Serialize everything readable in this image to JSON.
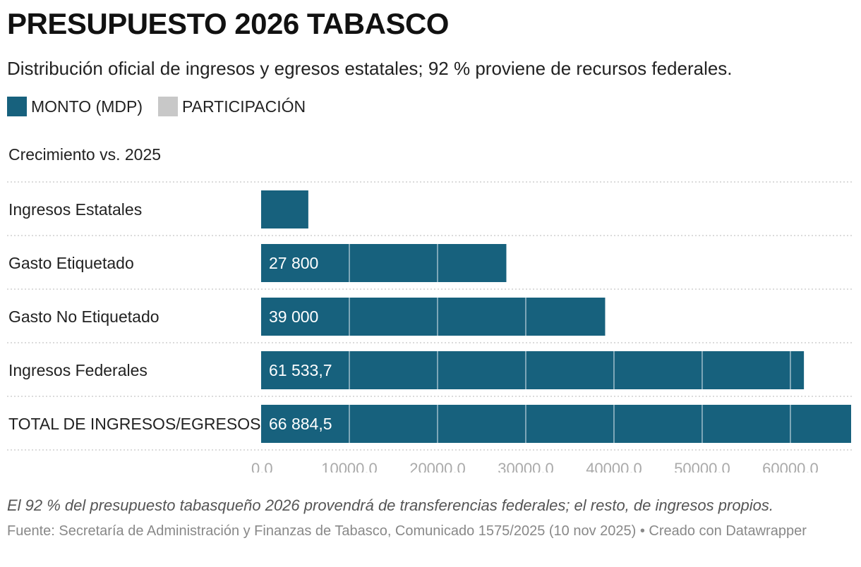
{
  "title": "PRESUPUESTO 2026 TABASCO",
  "subtitle": "Distribución oficial de ingresos y egresos estatales; 92 % proviene de recursos federales.",
  "legend": [
    {
      "label": "MONTO (MDP)",
      "color": "#17617d"
    },
    {
      "label": "PARTICIPACIÓN",
      "color": "#c8c8c8"
    }
  ],
  "column_header": "Crecimiento vs. 2025",
  "chart_data": {
    "type": "bar",
    "orientation": "horizontal",
    "categories": [
      "Ingresos Estatales",
      "Gasto Etiquetado",
      "Gasto No Etiquetado",
      "Ingresos Federales",
      "TOTAL DE INGRESOS/EGRESOS"
    ],
    "values": [
      5350.8,
      27800,
      39000,
      61533.7,
      66884.5
    ],
    "value_labels": [
      "",
      "27 800",
      "39 000",
      "61 533,7",
      "66 884,5"
    ],
    "xlim": [
      0,
      66884.5
    ],
    "ticks": [
      0,
      10000,
      20000,
      30000,
      40000,
      50000,
      60000
    ],
    "tick_labels": [
      "0,0",
      "10000,0",
      "20000,0",
      "30000,0",
      "40000,0",
      "50000,0",
      "60000,0"
    ],
    "bar_color": "#17617d",
    "grid": true
  },
  "note": "El 92 % del presupuesto tabasqueño 2026 provendrá de transferencias federales; el resto, de ingresos propios.",
  "source": "Fuente: Secretaría de Administración y Finanzas de Tabasco, Comunicado 1575/2025 (10 nov 2025) • Creado con Datawrapper"
}
